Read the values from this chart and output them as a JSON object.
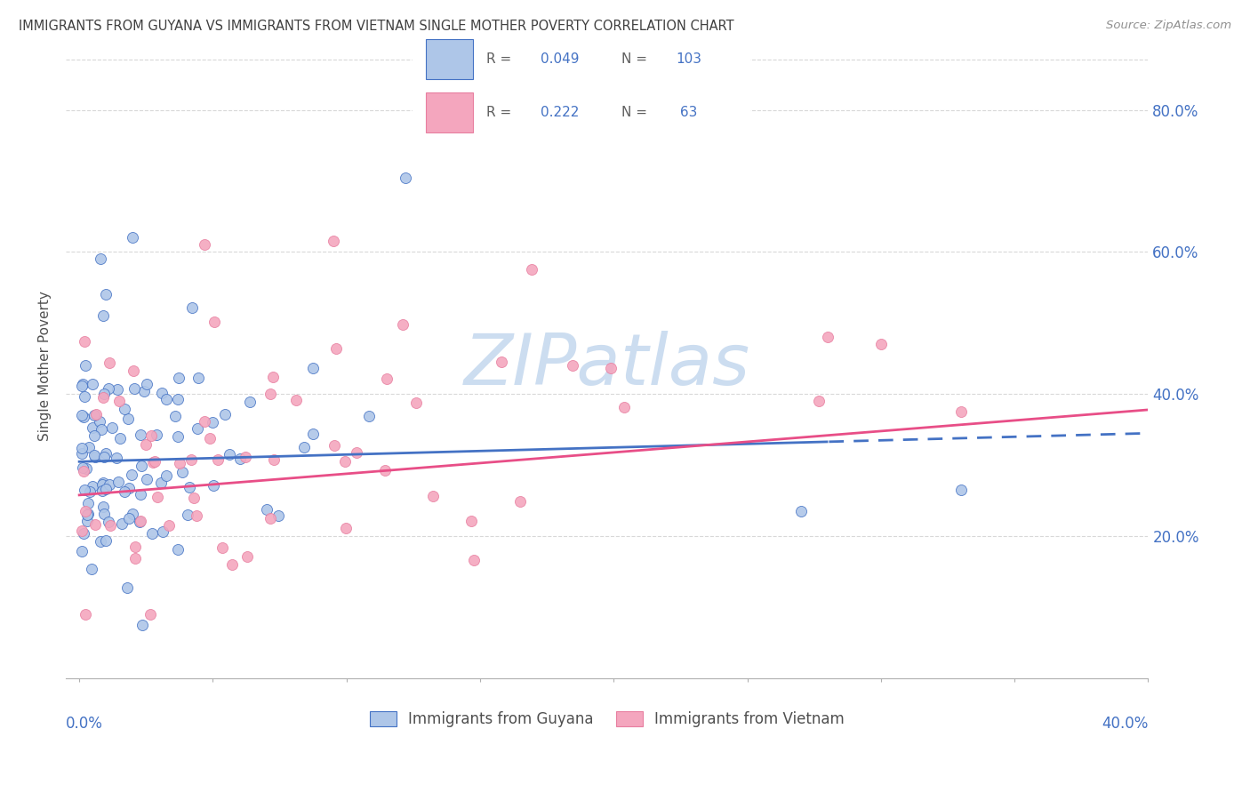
{
  "title": "IMMIGRANTS FROM GUYANA VS IMMIGRANTS FROM VIETNAM SINGLE MOTHER POVERTY CORRELATION CHART",
  "source": "Source: ZipAtlas.com",
  "ylabel": "Single Mother Poverty",
  "color_guyana_fill": "#aec6e8",
  "color_guyana_edge": "#4472c4",
  "color_vietnam_fill": "#f4a6be",
  "color_vietnam_edge": "#e87fa0",
  "color_line_guyana": "#4472c4",
  "color_line_vietnam": "#e84e87",
  "color_axis_text": "#4472c4",
  "color_title": "#404040",
  "color_grid": "#d8d8d8",
  "watermark": "ZIPatlas",
  "watermark_color": "#ccddf0",
  "R_guyana": 0.049,
  "N_guyana": 103,
  "R_vietnam": 0.222,
  "N_vietnam": 63,
  "xlim": [
    0.0,
    0.4
  ],
  "ylim": [
    0.0,
    0.88
  ],
  "yticks": [
    0.2,
    0.4,
    0.6,
    0.8
  ],
  "ytick_labels": [
    "20.0%",
    "40.0%",
    "60.0%",
    "80.0%"
  ]
}
